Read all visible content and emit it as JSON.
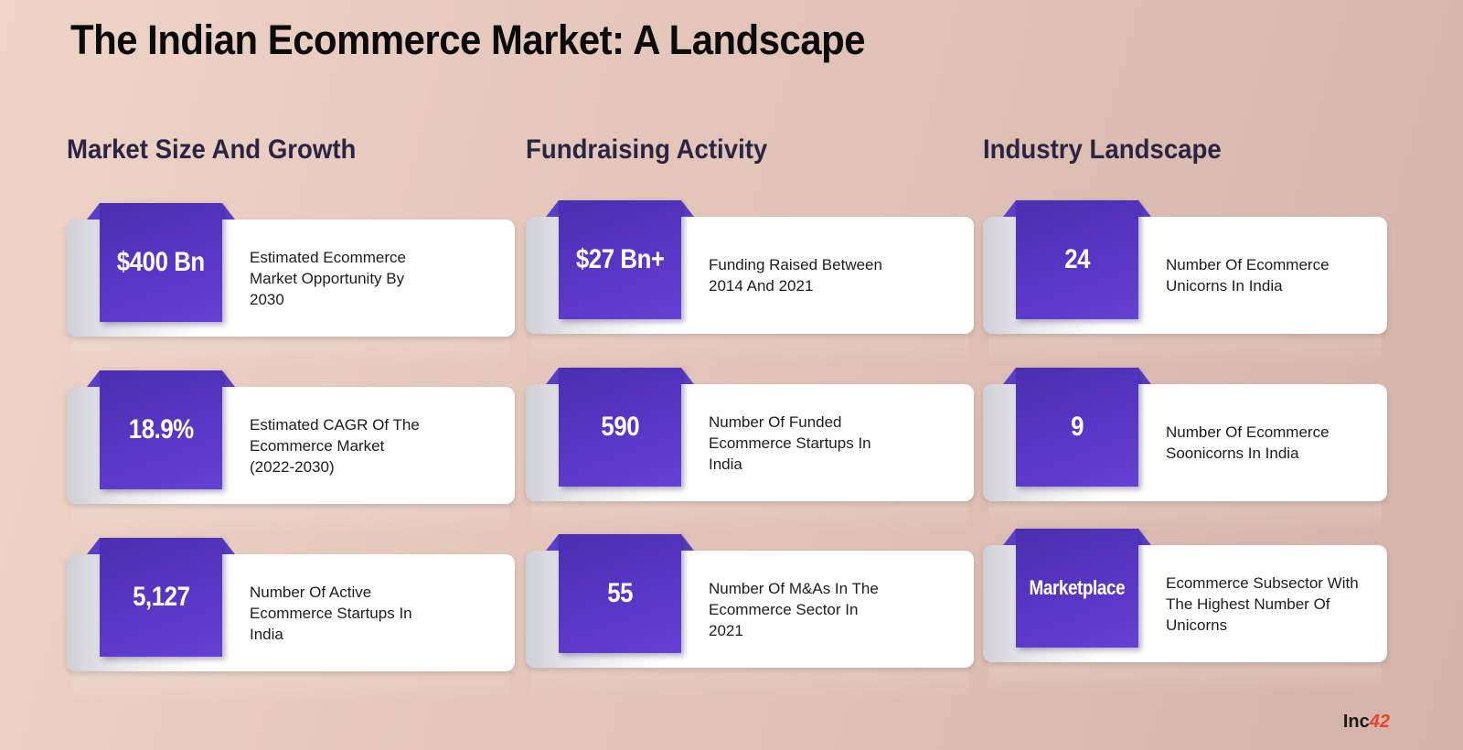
{
  "title": "The Indian Ecommerce Market: A Landscape",
  "columns": [
    {
      "heading": "Market Size And Growth",
      "cards": [
        {
          "value": "$400 Bn",
          "desc": "Estimated Ecommerce Market Opportunity By 2030"
        },
        {
          "value": "18.9%",
          "desc": "Estimated CAGR Of The Ecommerce Market (2022-2030)"
        },
        {
          "value": "5,127",
          "desc": "Number Of Active Ecommerce Startups In India"
        }
      ]
    },
    {
      "heading": "Fundraising Activity",
      "cards": [
        {
          "value": "$27 Bn+",
          "desc": "Funding Raised Between 2014 And 2021"
        },
        {
          "value": "590",
          "desc": "Number Of Funded Ecommerce Startups In India"
        },
        {
          "value": "55",
          "desc": "Number Of M&As In The Ecommerce Sector In 2021"
        }
      ]
    },
    {
      "heading": "Industry Landscape",
      "cards": [
        {
          "value": "24",
          "desc": "Number Of Ecommerce Unicorns In India"
        },
        {
          "value": "9",
          "desc": "Number Of Ecommerce Soonicorns In India"
        },
        {
          "value": "Marketplace",
          "desc": "Ecommerce Subsector With The Highest Number Of Unicorns"
        }
      ]
    }
  ],
  "logo": {
    "main": "Inc",
    "accent": "42"
  },
  "colors": {
    "value_box": "#5836c6",
    "heading": "#2b2545",
    "logo_accent": "#e8452c"
  }
}
